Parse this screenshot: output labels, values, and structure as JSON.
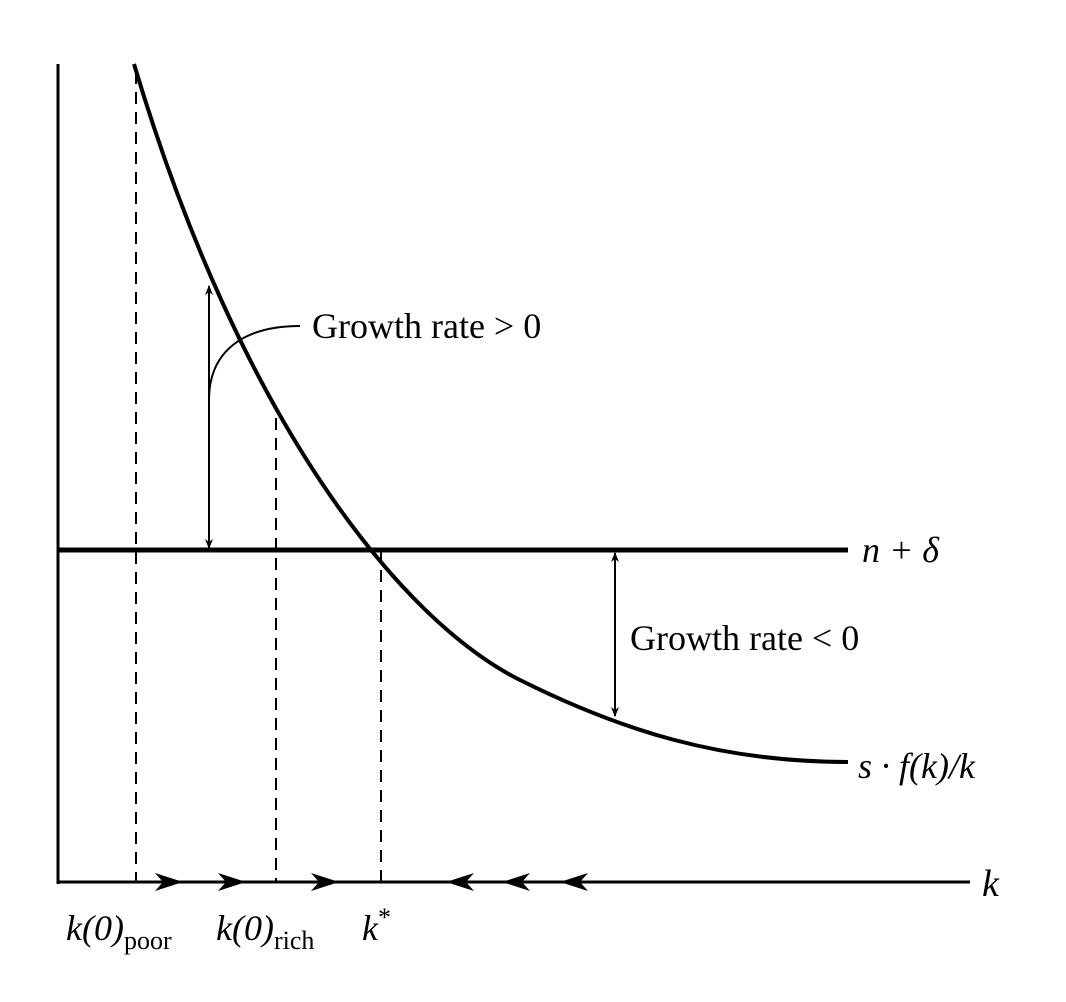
{
  "labels": {
    "growth_positive": "Growth rate > 0",
    "growth_negative": "Growth rate < 0",
    "x_axis": "k",
    "line_label": "n + δ",
    "curve_label": "s · f(k)/k"
  },
  "ticks": {
    "k_poor_main": "k(0)",
    "k_poor_sub": "poor",
    "k_rich_main": "k(0)",
    "k_rich_sub": "rich",
    "k_star_main": "k",
    "k_star_sup": "*"
  },
  "colors": {
    "ink": "#000000",
    "background": "#ffffff"
  },
  "icons": {
    "right_arrowheads": 3,
    "left_arrowheads": 3
  }
}
